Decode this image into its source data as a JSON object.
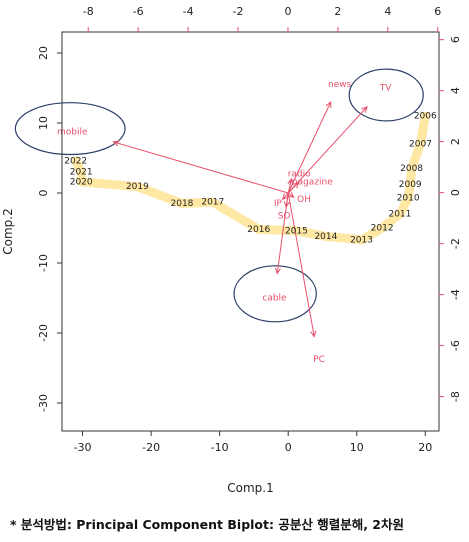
{
  "chart_data": {
    "type": "scatter",
    "subtype": "pca-biplot",
    "xlabel": "Comp.1",
    "ylabel": "Comp.2",
    "xlim": [
      -33,
      22
    ],
    "ylim": [
      -34,
      23
    ],
    "x_ticks": [
      "-30",
      "-20",
      "-10",
      "0",
      "10",
      "20"
    ],
    "y_ticks": [
      "-30",
      "-20",
      "-10",
      "0",
      "10",
      "20"
    ],
    "top_axis": {
      "lim": [
        -9.05,
        6.05
      ],
      "ticks": [
        "-8",
        "-6",
        "-4",
        "-2",
        "0",
        "2",
        "4",
        "6"
      ]
    },
    "right_axis": {
      "lim": [
        -9.35,
        6.3
      ],
      "ticks": [
        "-8",
        "-6",
        "-4",
        "-2",
        "0",
        "2",
        "4",
        "6"
      ]
    },
    "observation_color": "#222222",
    "loading_color": "#e8506b",
    "trajectory_color": "#ffe69a",
    "ellipse_color": "#2c3e66",
    "observations": [
      {
        "label": "2006",
        "x": 20.0,
        "y": 11.0
      },
      {
        "label": "2007",
        "x": 19.3,
        "y": 7.0
      },
      {
        "label": "2008",
        "x": 18.0,
        "y": 3.5
      },
      {
        "label": "2009",
        "x": 17.8,
        "y": 1.2
      },
      {
        "label": "2010",
        "x": 17.5,
        "y": -0.7
      },
      {
        "label": "2011",
        "x": 16.3,
        "y": -3.0
      },
      {
        "label": "2012",
        "x": 13.7,
        "y": -5.0
      },
      {
        "label": "2013",
        "x": 10.7,
        "y": -6.7
      },
      {
        "label": "2014",
        "x": 5.5,
        "y": -6.2
      },
      {
        "label": "2015",
        "x": 1.2,
        "y": -5.4
      },
      {
        "label": "2016",
        "x": -4.3,
        "y": -5.2
      },
      {
        "label": "2017",
        "x": -11.0,
        "y": -1.3
      },
      {
        "label": "2018",
        "x": -15.5,
        "y": -1.5
      },
      {
        "label": "2019",
        "x": -22.0,
        "y": 0.9
      },
      {
        "label": "2020",
        "x": -30.2,
        "y": 1.6
      },
      {
        "label": "2021",
        "x": -30.2,
        "y": 3.0
      },
      {
        "label": "2022",
        "x": -31.0,
        "y": 4.6
      }
    ],
    "trajectory_order": [
      "2006",
      "2007",
      "2008",
      "2009",
      "2010",
      "2011",
      "2012",
      "2013",
      "2014",
      "2015",
      "2016",
      "2017",
      "2018",
      "2019",
      "2020",
      "2021",
      "2022"
    ],
    "loadings": [
      {
        "label": "news",
        "x": 6.2,
        "y": 13.0,
        "lx": 7.5,
        "ly": 15.5
      },
      {
        "label": "TV",
        "x": 11.5,
        "y": 12.3,
        "lx": 14.2,
        "ly": 15.0
      },
      {
        "label": "mobile",
        "x": -25.5,
        "y": 7.3,
        "lx": -31.5,
        "ly": 8.7
      },
      {
        "label": "radio",
        "x": 0.5,
        "y": 2.0,
        "lx": 1.6,
        "ly": 2.7
      },
      {
        "label": "magazine",
        "x": 1.5,
        "y": 1.5,
        "lx": 3.3,
        "ly": 1.6
      },
      {
        "label": "OH",
        "x": 0.8,
        "y": -0.6,
        "lx": 2.3,
        "ly": -0.9
      },
      {
        "label": "IP",
        "x": -0.8,
        "y": -0.9,
        "lx": -1.5,
        "ly": -1.5
      },
      {
        "label": "SO",
        "x": -0.3,
        "y": -2.0,
        "lx": -0.6,
        "ly": -3.3
      },
      {
        "label": "cable",
        "x": -1.6,
        "y": -11.5,
        "lx": -2.0,
        "ly": -15.0
      },
      {
        "label": "PC",
        "x": 3.8,
        "y": -20.5,
        "lx": 4.5,
        "ly": -23.8
      }
    ],
    "highlight_ellipses": [
      {
        "cx": -31.8,
        "cy": 9.2,
        "rx": 8.0,
        "ry": 3.7
      },
      {
        "cx": 14.3,
        "cy": 14.0,
        "rx": 5.4,
        "ry": 3.7
      },
      {
        "cx": -1.9,
        "cy": -14.4,
        "rx": 6.0,
        "ry": 4.0
      }
    ]
  },
  "footnote": "* 분석방법: Principal Component Biplot: 공분산 행렬분해, 2차원"
}
